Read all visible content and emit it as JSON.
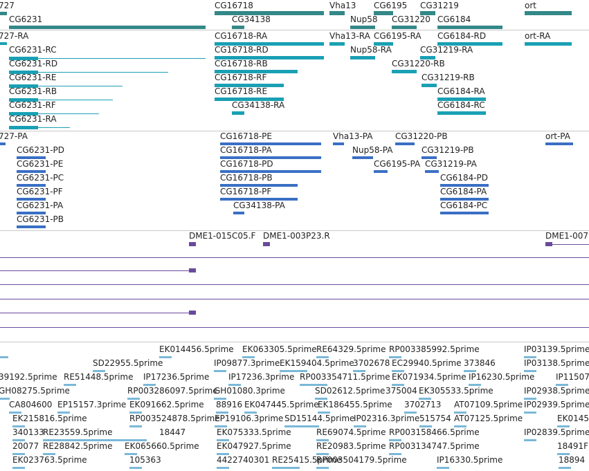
{
  "colors": {
    "gene": "#338888",
    "transcript": "#1aa0b4",
    "protein": "#3a6fc4",
    "clone": "#6a4a9c",
    "est": "#7ab8d8",
    "separator": "#c8c8c8"
  },
  "tracks": {
    "genes": [
      {
        "label": "727"
      },
      {
        "label": "CG6231"
      },
      {
        "label": "CG16718"
      },
      {
        "label": "CG34138"
      },
      {
        "label": "Vha13"
      },
      {
        "label": "Nup58"
      },
      {
        "label": "CG6195"
      },
      {
        "label": "CG31220"
      },
      {
        "label": "CG31219"
      },
      {
        "label": "CG6184"
      },
      {
        "label": "ort"
      }
    ],
    "transcripts": [
      {
        "label": "727-RA"
      },
      {
        "label": "CG6231-RC"
      },
      {
        "label": "CG6231-RD"
      },
      {
        "label": "CG6231-RE"
      },
      {
        "label": "CG6231-RB"
      },
      {
        "label": "CG6231-RF"
      },
      {
        "label": "CG6231-RA"
      },
      {
        "label": "CG16718-RA"
      },
      {
        "label": "CG16718-RD"
      },
      {
        "label": "CG16718-RB"
      },
      {
        "label": "CG16718-RF"
      },
      {
        "label": "CG16718-RE"
      },
      {
        "label": "CG34138-RA"
      },
      {
        "label": "Vha13-RA"
      },
      {
        "label": "CG6195-RA"
      },
      {
        "label": "Nup58-RA"
      },
      {
        "label": "CG31220-RB"
      },
      {
        "label": "CG6184-RD"
      },
      {
        "label": "CG31219-RA"
      },
      {
        "label": "CG31219-RB"
      },
      {
        "label": "CG6184-RA"
      },
      {
        "label": "CG6184-RC"
      },
      {
        "label": "ort-RA"
      }
    ],
    "proteins": [
      {
        "label": "727-PA"
      },
      {
        "label": "CG6231-PD"
      },
      {
        "label": "CG6231-PE"
      },
      {
        "label": "CG6231-PC"
      },
      {
        "label": "CG6231-PF"
      },
      {
        "label": "CG6231-PA"
      },
      {
        "label": "CG6231-PB"
      },
      {
        "label": "CG16718-PE"
      },
      {
        "label": "CG16718-PA"
      },
      {
        "label": "CG16718-PD"
      },
      {
        "label": "CG16718-PB"
      },
      {
        "label": "CG16718-PF"
      },
      {
        "label": "CG34138-PA"
      },
      {
        "label": "Vha13-PA"
      },
      {
        "label": "CG31220-PB"
      },
      {
        "label": "Nup58-PA"
      },
      {
        "label": "CG31219-PB"
      },
      {
        "label": "CG6195-PA"
      },
      {
        "label": "CG31219-PA"
      },
      {
        "label": "CG6184-PD"
      },
      {
        "label": "CG6184-PA"
      },
      {
        "label": "CG6184-PC"
      },
      {
        "label": "ort-PA"
      }
    ],
    "clones": [
      {
        "label": "DME1-015C05.F"
      },
      {
        "label": "DME1-003P23.R"
      },
      {
        "label": "DME1-007"
      }
    ],
    "ests": [
      {
        "label": "EK014456.5prime"
      },
      {
        "label": "EK063305.5prime"
      },
      {
        "label": "RE64329.5prime"
      },
      {
        "label": "RP003385992.5prime"
      },
      {
        "label": "IP03139.5prime"
      },
      {
        "label": "SD22955.5prime"
      },
      {
        "label": "IP09877.3prime"
      },
      {
        "label": "EK159404.5prime"
      },
      {
        "label": "3702678"
      },
      {
        "label": "EC29940.5prime"
      },
      {
        "label": "373846"
      },
      {
        "label": "IP03138.5prime"
      },
      {
        "label": "39192.5prime"
      },
      {
        "label": "RE51448.5prime"
      },
      {
        "label": "IP17236.5prime"
      },
      {
        "label": "IP17236.3prime"
      },
      {
        "label": "RP003354711.5prime"
      },
      {
        "label": "EK071934.5prime"
      },
      {
        "label": "IP16230.5prime"
      },
      {
        "label": "IP11507"
      },
      {
        "label": "GH08275.5prime"
      },
      {
        "label": "RP003286097.5prime"
      },
      {
        "label": "GH01080.3prime"
      },
      {
        "label": "SD02612.5prime"
      },
      {
        "label": "375004"
      },
      {
        "label": "EK305533.5prime"
      },
      {
        "label": "IP02938.5prime"
      },
      {
        "label": "CA804600"
      },
      {
        "label": "EP15157.3prime"
      },
      {
        "label": "EK091662.5prime"
      },
      {
        "label": "88916"
      },
      {
        "label": "EK047445.5prime"
      },
      {
        "label": "EK186455.5prime"
      },
      {
        "label": "3702713"
      },
      {
        "label": "AT07109.5prime"
      },
      {
        "label": "IP02939.5prime"
      },
      {
        "label": "EK215816.5prime"
      },
      {
        "label": "RP003524878.5prime"
      },
      {
        "label": "EP19106.3prime"
      },
      {
        "label": "SD15144.5prime"
      },
      {
        "label": "IP02316.3prime"
      },
      {
        "label": "515754"
      },
      {
        "label": "AT07125.5prime"
      },
      {
        "label": "EK0145"
      },
      {
        "label": "340133"
      },
      {
        "label": "RE23559.5prime"
      },
      {
        "label": "18447"
      },
      {
        "label": "EK075333.5prime"
      },
      {
        "label": "RE69074.5prime"
      },
      {
        "label": "RP003158466.5prime"
      },
      {
        "label": "IP02839.5prime"
      },
      {
        "label": "20077"
      },
      {
        "label": "RE28842.5prime"
      },
      {
        "label": "EK065660.5prime"
      },
      {
        "label": "EK047927.5prime"
      },
      {
        "label": "RE20983.5prime"
      },
      {
        "label": "RP003134747.5prime"
      },
      {
        "label": "18491F"
      },
      {
        "label": "EK023763.5prime"
      },
      {
        "label": "105363"
      },
      {
        "label": "4422740301"
      },
      {
        "label": "RE25415.5prime"
      },
      {
        "label": "RP003504179.5prime"
      },
      {
        "label": "IP16330.5prime"
      },
      {
        "label": "18894"
      }
    ]
  }
}
